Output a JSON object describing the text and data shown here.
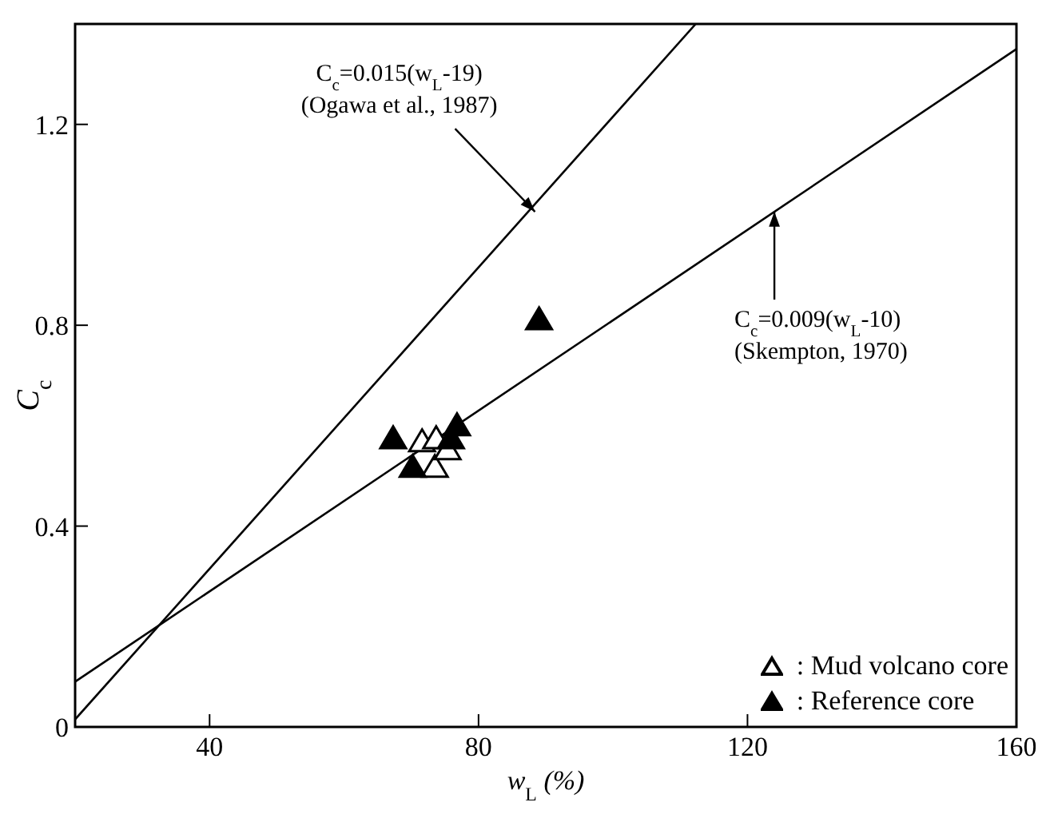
{
  "chart_data": {
    "type": "scatter",
    "xlabel": "w$_{L}$ (%)",
    "ylabel": "C$_{c}$",
    "xlim": [
      20,
      160
    ],
    "ylim": [
      0,
      1.4
    ],
    "xticks": [
      40,
      80,
      120,
      160
    ],
    "yticks": [
      0,
      0.4,
      0.8,
      1.2
    ],
    "grid": false,
    "legend": "bottom right",
    "series": [
      {
        "name": ": Mud volcano core",
        "type": "scatter",
        "marker": "triangle",
        "color": "#000000",
        "x": [
          71.6,
          73.7,
          73.5,
          75.4
        ],
        "values": [
          0.567,
          0.573,
          0.516,
          0.551
        ]
      },
      {
        "name": ": Reference core",
        "marker": "triangle",
        "color": "#000000",
        "x": [
          67.3,
          70.2,
          76.8,
          75.9,
          89
        ],
        "values": [
          0.573,
          0.516,
          0.599,
          0.573,
          0.81
        ]
      },
      {
        "type": "line",
        "marker": "none",
        "color": "#000000",
        "x": [
          20,
          112.3
        ],
        "values": [
          0.015,
          1.4
        ]
      },
      {
        "type": "line",
        "marker": "none",
        "color": "#000000",
        "x": [
          20,
          160
        ],
        "values": [
          0.09,
          1.35
        ]
      }
    ],
    "annotations": [
      {
        "text": "C$_{c}$=0.015(w$_{L}$-19)\n(Ogawa et al., 1987)",
        "x": 88.4,
        "y": 1.026
      },
      {
        "text": "C$_{c}$=0.009(w$_{L}$-10)\n(Skempton, 1970)",
        "x": 124,
        "y": 1.026
      }
    ]
  }
}
